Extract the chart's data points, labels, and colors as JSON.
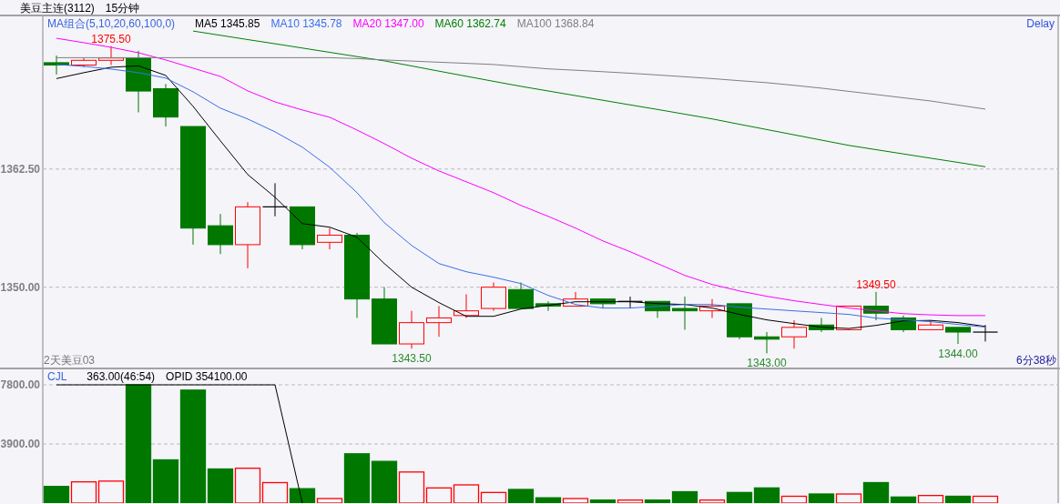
{
  "chart_data": [
    {
      "type": "candlestick",
      "title": "美豆主连(3112)",
      "subtitle": "15分钟",
      "legend_title": "MA组合(5,10,20,60,100,0)",
      "legend": "top left",
      "grid": "y",
      "categories": [
        null,
        null,
        null,
        null,
        null,
        null,
        null,
        null,
        null,
        null,
        null,
        null,
        null,
        null,
        null,
        null,
        null,
        null,
        null,
        null,
        null,
        null,
        null,
        null,
        null,
        null,
        null,
        null,
        null,
        null,
        null,
        null,
        null,
        null,
        null
      ],
      "ylim": [
        1341.5,
        1378.65
      ],
      "yticks": [
        {
          "value": 1350,
          "label": "1350.00"
        },
        {
          "value": 1362.5,
          "label": "1362.50"
        }
      ],
      "ohlc": [
        [
          1373.75,
          1374.5,
          1372.5,
          1373.5
        ],
        [
          1373.5,
          1374.25,
          1373.25,
          1374.0
        ],
        [
          1374.0,
          1375.5,
          1373.5,
          1374.25
        ],
        [
          1374.25,
          1375.0,
          1368.5,
          1370.75
        ],
        [
          1371.0,
          1371.5,
          1367.0,
          1368.0
        ],
        [
          1367.0,
          1367.0,
          1354.5,
          1356.25
        ],
        [
          1356.5,
          1357.75,
          1353.5,
          1354.5
        ],
        [
          1354.5,
          1359.0,
          1352.0,
          1358.5
        ],
        [
          1358.5,
          1361.0,
          1357.5,
          1358.5
        ],
        [
          1358.5,
          1358.5,
          1354.0,
          1354.5
        ],
        [
          1354.75,
          1356.25,
          1354.0,
          1355.5
        ],
        [
          1355.5,
          1355.75,
          1346.75,
          1348.75
        ],
        [
          1348.75,
          1350.0,
          1344.0,
          1344.0
        ],
        [
          1344.0,
          1347.5,
          1343.5,
          1346.25
        ],
        [
          1346.25,
          1348.0,
          1344.75,
          1346.75
        ],
        [
          1347.0,
          1349.25,
          1346.75,
          1347.5
        ],
        [
          1347.75,
          1350.5,
          1347.5,
          1350.0
        ],
        [
          1349.75,
          1350.5,
          1347.75,
          1347.75
        ],
        [
          1348.25,
          1348.5,
          1347.5,
          1348.0
        ],
        [
          1348.0,
          1349.5,
          1348.0,
          1348.75
        ],
        [
          1348.75,
          1348.75,
          1347.75,
          1348.25
        ],
        [
          1348.5,
          1349.0,
          1347.75,
          1348.5
        ],
        [
          1348.5,
          1348.5,
          1346.75,
          1347.5
        ],
        [
          1347.75,
          1349.0,
          1345.5,
          1347.5
        ],
        [
          1347.5,
          1348.75,
          1346.75,
          1348.0
        ],
        [
          1348.25,
          1348.25,
          1344.5,
          1344.75
        ],
        [
          1344.75,
          1345.25,
          1343.0,
          1344.5
        ],
        [
          1344.75,
          1346.5,
          1343.5,
          1345.75
        ],
        [
          1346.0,
          1346.75,
          1345.25,
          1345.5
        ],
        [
          1345.5,
          1348.0,
          1345.5,
          1348.0
        ],
        [
          1348.0,
          1349.5,
          1346.5,
          1347.25
        ],
        [
          1346.75,
          1347.0,
          1345.25,
          1345.5
        ],
        [
          1345.5,
          1346.5,
          1345.5,
          1346.0
        ],
        [
          1345.75,
          1345.75,
          1344.0,
          1345.25
        ],
        [
          1345.25,
          1346.0,
          1344.25,
          1345.25
        ]
      ],
      "colors": [
        "#007800",
        "#ff0000",
        "#ff0000",
        "#007800",
        "#007800",
        "#007800",
        "#007800",
        "#ff0000",
        "#000000",
        "#007800",
        "#ff0000",
        "#007800",
        "#007800",
        "#ff0000",
        "#ff0000",
        "#ff0000",
        "#ff0000",
        "#007800",
        "#007800",
        "#ff0000",
        "#007800",
        "#000000",
        "#007800",
        "#007800",
        "#ff0000",
        "#007800",
        "#007800",
        "#ff0000",
        "#007800",
        "#ff0000",
        "#007800",
        "#007800",
        "#ff0000",
        "#007800",
        "#000000"
      ],
      "series": [
        {
          "type": "line",
          "name": "MA5 1345.85",
          "color": "#000000",
          "values": [
            1372.07,
            1372.69,
            1373.27,
            1373.41,
            1372.4,
            1369.13,
            1365.48,
            1361.92,
            1359.52,
            1356.73,
            1356.35,
            1355.29,
            1352.5,
            1350.0,
            1348.37,
            1346.92,
            1346.92,
            1347.69,
            1348.08,
            1348.46,
            1348.46,
            1348.46,
            1348.27,
            1348.17,
            1347.79,
            1347.12,
            1346.54,
            1346.15,
            1345.77,
            1345.63,
            1345.96,
            1346.44,
            1346.49,
            1346.25,
            1345.85
          ]
        },
        {
          "type": "line",
          "name": "MA10 1345.78",
          "color": "#3b6fe8",
          "values": [
            1373.56,
            1373.37,
            1373.08,
            1372.69,
            1372.12,
            1370.67,
            1368.94,
            1367.79,
            1366.44,
            1364.81,
            1362.69,
            1360.0,
            1356.83,
            1354.42,
            1352.5,
            1351.63,
            1351.06,
            1350.38,
            1349.13,
            1348.17,
            1347.79,
            1347.79,
            1347.98,
            1348.17,
            1348.17,
            1347.88,
            1347.69,
            1347.5,
            1347.31,
            1347.12,
            1346.73,
            1346.54,
            1346.35,
            1346.06,
            1345.78
          ]
        },
        {
          "type": "line",
          "name": "MA20 1347.00",
          "color": "#ff00ff",
          "values": [
            1376.33,
            1375.87,
            1375.38,
            1374.8,
            1374.04,
            1373.17,
            1372.3,
            1370.77,
            1369.6,
            1368.75,
            1367.98,
            1366.63,
            1365.19,
            1363.65,
            1362.3,
            1361.15,
            1360.0,
            1358.65,
            1357.5,
            1356.25,
            1354.9,
            1353.75,
            1352.5,
            1351.25,
            1350.29,
            1349.6,
            1349.04,
            1348.56,
            1348.17,
            1347.79,
            1347.5,
            1347.2,
            1347.07,
            1347.0,
            1347.0
          ]
        },
        {
          "type": "line",
          "name": "MA60 1362.74",
          "color": "#008000",
          "values": [
            null,
            null,
            null,
            null,
            null,
            1377.1,
            1376.65,
            1376.2,
            1375.75,
            1375.3,
            1374.85,
            1374.4,
            1373.94,
            1373.4,
            1372.86,
            1372.32,
            1371.78,
            1371.25,
            1370.76,
            1370.27,
            1369.78,
            1369.29,
            1368.8,
            1368.3,
            1367.8,
            1367.24,
            1366.68,
            1366.12,
            1365.56,
            1365.0,
            1364.55,
            1364.1,
            1363.65,
            1363.2,
            1362.74
          ]
        },
        {
          "type": "line",
          "name": "MA100 1368.84",
          "color": "#808080",
          "values": [
            1374.28,
            1374.28,
            1374.28,
            1374.28,
            1374.28,
            1374.28,
            1374.28,
            1374.28,
            1374.28,
            1374.28,
            1374.28,
            1374.18,
            1374.04,
            1373.92,
            1373.8,
            1373.68,
            1373.56,
            1373.33,
            1373.1,
            1372.95,
            1372.8,
            1372.63,
            1372.45,
            1372.26,
            1372.07,
            1371.85,
            1371.63,
            1371.35,
            1371.06,
            1370.72,
            1370.38,
            1370.04,
            1369.7,
            1369.27,
            1368.84
          ]
        }
      ],
      "annotations": [
        {
          "text": "1375.50",
          "y": 1375.5
        },
        {
          "text": "1343.50",
          "y": 1343.5
        },
        {
          "text": "1343.00",
          "y": 1343.0
        },
        {
          "text": "1349.50",
          "y": 1349.5
        },
        {
          "text": "1344.00",
          "y": 1344.0
        },
        "Delay",
        "2天美豆03",
        "6分38秒"
      ]
    },
    {
      "type": "bar",
      "legend_title": "CJL",
      "legend": "top left",
      "grid": "y",
      "categories": [
        null,
        null,
        null,
        null,
        null,
        null,
        null,
        null,
        null,
        null,
        null,
        null,
        null,
        null,
        null,
        null,
        null,
        null,
        null,
        null,
        null,
        null,
        null,
        null,
        null,
        null,
        null,
        null,
        null,
        null,
        null,
        null,
        null,
        null,
        null
      ],
      "ylim": [
        0,
        8820
      ],
      "yticks": [
        {
          "value": 3900,
          "label": "3900.00"
        },
        {
          "value": 7800,
          "label": "7800.00"
        }
      ],
      "series": [
        {
          "type": "bar",
          "values": [
            1100,
            1400,
            1450,
            7800,
            2850,
            7450,
            2250,
            2300,
            1350,
            950,
            300,
            3250,
            2750,
            2050,
            1000,
            1200,
            700,
            900,
            350,
            300,
            200,
            200,
            200,
            750,
            200,
            700,
            1000,
            450,
            600,
            600,
            1350,
            400,
            500,
            450,
            450
          ],
          "colors": [
            "#007800",
            "#ff0000",
            "#ff0000",
            "#007800",
            "#007800",
            "#007800",
            "#007800",
            "#ff0000",
            "#ff0000",
            "#007800",
            "#ff0000",
            "#007800",
            "#007800",
            "#ff0000",
            "#ff0000",
            "#ff0000",
            "#ff0000",
            "#007800",
            "#007800",
            "#ff0000",
            "#007800",
            "#ff0000",
            "#007800",
            "#007800",
            "#ff0000",
            "#007800",
            "#007800",
            "#ff0000",
            "#007800",
            "#ff0000",
            "#007800",
            "#007800",
            "#ff0000",
            "#007800",
            "#ff0000"
          ]
        },
        {
          "type": "line",
          "name": "OPID 354100.00",
          "color": "#000000",
          "values": [
            7800,
            7800,
            7800,
            7800,
            7800,
            7800,
            7800,
            7800,
            7800,
            0,
            null,
            null,
            null,
            null,
            null,
            null,
            null,
            null,
            null,
            null,
            null,
            null,
            null,
            null,
            null,
            null,
            null,
            null,
            null,
            null,
            null,
            null,
            null,
            null,
            null
          ]
        }
      ],
      "annotations": [
        "363.00(46:54)"
      ]
    }
  ]
}
